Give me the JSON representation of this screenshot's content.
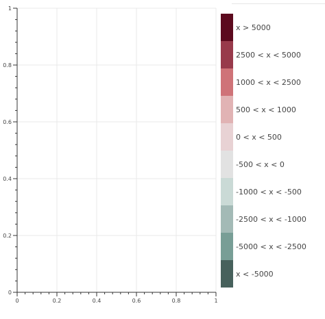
{
  "chart_data": {
    "type": "heatmap",
    "title": "",
    "xlabel": "",
    "ylabel": "",
    "xlim": [
      0,
      1
    ],
    "ylim": [
      0,
      1
    ],
    "grid": true,
    "x_ticks": [
      "0",
      "0.2",
      "0.4",
      "0.6",
      "0.8",
      "1"
    ],
    "y_ticks": [
      "0",
      "0.2",
      "0.4",
      "0.6",
      "0.8",
      "1"
    ],
    "x_tick_values": [
      0,
      0.2,
      0.4,
      0.6,
      0.8,
      1
    ],
    "y_tick_values": [
      0,
      0.2,
      0.4,
      0.6,
      0.8,
      1
    ],
    "data_points": [],
    "legend": {
      "placement": "right",
      "items": [
        {
          "label": "x > 5000",
          "color": "#5c0a1e"
        },
        {
          "label": "2500 < x < 5000",
          "color": "#983a4b"
        },
        {
          "label": "1000 < x < 2500",
          "color": "#cf7378"
        },
        {
          "label": "500 < x < 1000",
          "color": "#e1b3b4"
        },
        {
          "label": " 0 < x < 500",
          "color": "#e8d2d4"
        },
        {
          "label": "-500 < x < 0",
          "color": "#e2e2e2"
        },
        {
          "label": "-1000 < x < -500",
          "color": "#cadad6"
        },
        {
          "label": "-2500 < x < -1000",
          "color": "#a3bab6"
        },
        {
          "label": "-5000 < x < -2500",
          "color": "#789e96"
        },
        {
          "label": "x < -5000",
          "color": "#47615c"
        }
      ]
    }
  }
}
